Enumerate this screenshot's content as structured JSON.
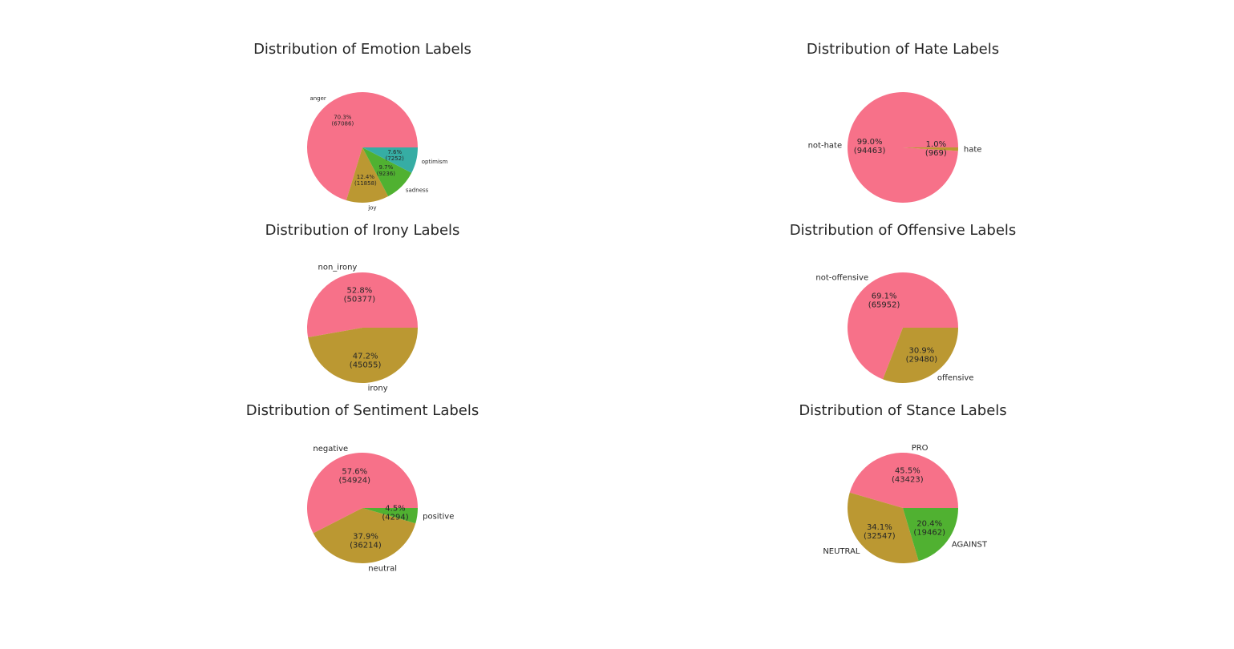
{
  "colors": {
    "palette": [
      "#f77189",
      "#bb9832",
      "#50b131",
      "#36ada4",
      "#3ba3ec",
      "#e866f4"
    ],
    "text": "#262626",
    "background": "#ffffff"
  },
  "chart_data": [
    {
      "type": "pie",
      "title": "Distribution of Emotion Labels",
      "categories": [
        "anger",
        "joy",
        "sadness",
        "optimism"
      ],
      "values": [
        67086,
        11858,
        9236,
        7252
      ],
      "percent_labels": [
        "70.3%",
        "12.4%",
        "9.7%",
        "7.6%"
      ],
      "count_labels": [
        "(67086)",
        "(11858)",
        "(9236)",
        "(7252)"
      ],
      "small_labels": true
    },
    {
      "type": "pie",
      "title": "Distribution of Hate Labels",
      "categories": [
        "not-hate",
        "hate"
      ],
      "values": [
        94463,
        969
      ],
      "percent_labels": [
        "99.0%",
        "1.0%"
      ],
      "count_labels": [
        "(94463)",
        "(969)"
      ],
      "small_labels": false
    },
    {
      "type": "pie",
      "title": "Distribution of Irony Labels",
      "categories": [
        "non_irony",
        "irony"
      ],
      "values": [
        50377,
        45055
      ],
      "percent_labels": [
        "52.8%",
        "47.2%"
      ],
      "count_labels": [
        "(50377)",
        "(45055)"
      ],
      "small_labels": false
    },
    {
      "type": "pie",
      "title": "Distribution of Offensive Labels",
      "categories": [
        "not-offensive",
        "offensive"
      ],
      "values": [
        65952,
        29480
      ],
      "percent_labels": [
        "69.1%",
        "30.9%"
      ],
      "count_labels": [
        "(65952)",
        "(29480)"
      ],
      "small_labels": false
    },
    {
      "type": "pie",
      "title": "Distribution of Sentiment Labels",
      "categories": [
        "negative",
        "neutral",
        "positive"
      ],
      "values": [
        54924,
        36214,
        4294
      ],
      "percent_labels": [
        "57.6%",
        "37.9%",
        "4.5%"
      ],
      "count_labels": [
        "(54924)",
        "(36214)",
        "(4294)"
      ],
      "small_labels": false
    },
    {
      "type": "pie",
      "title": "Distribution of Stance Labels",
      "categories": [
        "PRO",
        "NEUTRAL",
        "AGAINST"
      ],
      "values": [
        43423,
        32547,
        19462
      ],
      "percent_labels": [
        "45.5%",
        "34.1%",
        "20.4%"
      ],
      "count_labels": [
        "(43423)",
        "(32547)",
        "(19462)"
      ],
      "small_labels": false
    }
  ]
}
